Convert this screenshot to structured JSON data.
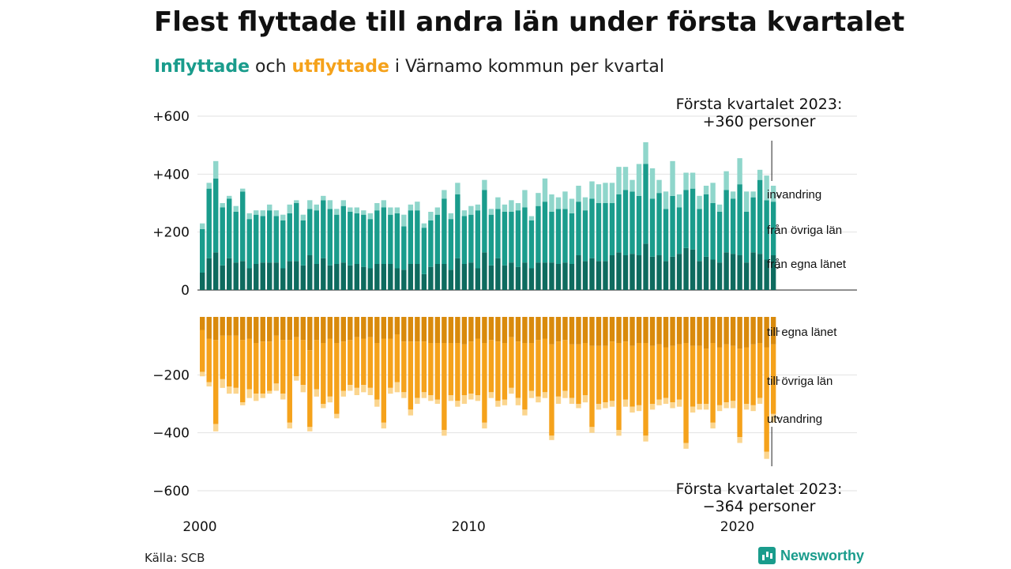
{
  "title": "Flest flyttade till andra län under första kvartalet",
  "subtitle": {
    "part1": "Inflyttade",
    "part2": " och ",
    "part3": "utflyttade",
    "part4": " i Värnamo kommun per kvartal"
  },
  "source": "Källa: SCB",
  "logo": "Newsworthy",
  "colors": {
    "in_local": "#0e6b5f",
    "in_other": "#1a9c8c",
    "in_abroad": "#8fd6cb",
    "out_local": "#d98a0c",
    "out_other": "#f5a21b",
    "out_abroad": "#fbd58e"
  },
  "chart_data": {
    "type": "bar",
    "stacked": true,
    "x_start": "2000 Q1",
    "x_ticks": [
      {
        "value": 2000,
        "label": "2000"
      },
      {
        "value": 2010,
        "label": "2010"
      },
      {
        "value": 2020,
        "label": "2020"
      }
    ],
    "y_ticks": [
      {
        "value": 600,
        "label": "+600"
      },
      {
        "value": 400,
        "label": "+400"
      },
      {
        "value": 200,
        "label": "+200"
      },
      {
        "value": 0,
        "label": "0"
      },
      {
        "value": -200,
        "label": "−200"
      },
      {
        "value": -400,
        "label": "−400"
      },
      {
        "value": -600,
        "label": "−600"
      }
    ],
    "ylim_in": [
      0,
      600
    ],
    "ylim_out": [
      -600,
      0
    ],
    "series_in": [
      {
        "name": "från egna länet",
        "values": [
          60,
          110,
          130,
          85,
          110,
          95,
          100,
          75,
          90,
          95,
          95,
          95,
          75,
          100,
          100,
          85,
          120,
          90,
          110,
          85,
          90,
          95,
          85,
          90,
          80,
          75,
          90,
          90,
          90,
          75,
          70,
          90,
          90,
          55,
          80,
          90,
          90,
          70,
          110,
          90,
          95,
          75,
          130,
          85,
          110,
          85,
          95,
          80,
          95,
          75,
          95,
          95,
          95,
          90,
          95,
          90,
          120,
          100,
          110,
          100,
          100,
          120,
          130,
          120,
          125,
          120,
          160,
          115,
          120,
          100,
          115,
          125,
          145,
          140,
          100,
          115,
          105,
          95,
          130,
          125,
          120,
          95,
          130,
          125,
          105,
          120
        ]
      },
      {
        "name": "från övriga län",
        "values": [
          150,
          240,
          255,
          200,
          205,
          175,
          240,
          170,
          170,
          160,
          180,
          160,
          165,
          165,
          200,
          155,
          160,
          185,
          200,
          195,
          170,
          195,
          185,
          175,
          180,
          170,
          185,
          195,
          170,
          190,
          150,
          185,
          185,
          160,
          160,
          170,
          225,
          175,
          220,
          165,
          165,
          200,
          215,
          175,
          170,
          185,
          175,
          195,
          190,
          165,
          195,
          210,
          175,
          190,
          185,
          175,
          185,
          175,
          205,
          200,
          200,
          180,
          200,
          225,
          215,
          205,
          275,
          200,
          215,
          180,
          210,
          160,
          200,
          210,
          180,
          215,
          195,
          175,
          215,
          190,
          245,
          175,
          190,
          255,
          205,
          185
        ]
      },
      {
        "name": "invandring",
        "values": [
          20,
          20,
          60,
          15,
          10,
          20,
          10,
          20,
          15,
          20,
          20,
          20,
          20,
          30,
          10,
          20,
          30,
          20,
          15,
          30,
          20,
          20,
          15,
          20,
          15,
          20,
          25,
          25,
          25,
          20,
          40,
          20,
          30,
          15,
          30,
          25,
          30,
          20,
          40,
          20,
          30,
          20,
          35,
          20,
          40,
          25,
          40,
          25,
          60,
          15,
          45,
          80,
          60,
          40,
          60,
          50,
          55,
          45,
          60,
          65,
          70,
          70,
          95,
          80,
          40,
          110,
          75,
          105,
          45,
          60,
          120,
          45,
          60,
          55,
          45,
          30,
          70,
          25,
          65,
          25,
          90,
          70,
          20,
          35,
          85,
          55
        ]
      }
    ],
    "series_out": [
      {
        "name": "till egna länet",
        "values": [
          -45,
          -75,
          -80,
          -65,
          -65,
          -65,
          -80,
          -75,
          -90,
          -85,
          -85,
          -65,
          -80,
          -80,
          -70,
          -80,
          -115,
          -80,
          -90,
          -75,
          -90,
          -85,
          -80,
          -70,
          -75,
          -70,
          -90,
          -75,
          -75,
          -60,
          -85,
          -85,
          -85,
          -85,
          -90,
          -90,
          -90,
          -90,
          -90,
          -95,
          -85,
          -75,
          -90,
          -80,
          -85,
          -90,
          -70,
          -85,
          -90,
          -90,
          -80,
          -75,
          -95,
          -85,
          -80,
          -95,
          -95,
          -90,
          -100,
          -100,
          -100,
          -85,
          -90,
          -85,
          -100,
          -90,
          -90,
          -100,
          -95,
          -105,
          -100,
          -95,
          -90,
          -100,
          -100,
          -110,
          -90,
          -105,
          -95,
          -100,
          -110,
          -105,
          -95,
          -90,
          -105,
          -95
        ]
      },
      {
        "name": "till övriga län",
        "values": [
          -145,
          -150,
          -290,
          -150,
          -175,
          -180,
          -215,
          -175,
          -175,
          -180,
          -170,
          -165,
          -185,
          -285,
          -135,
          -155,
          -265,
          -170,
          -210,
          -200,
          -245,
          -170,
          -155,
          -175,
          -160,
          -175,
          -195,
          -290,
          -170,
          -165,
          -175,
          -235,
          -195,
          -175,
          -180,
          -195,
          -300,
          -180,
          -200,
          -175,
          -180,
          -195,
          -275,
          -180,
          -205,
          -195,
          -175,
          -195,
          -230,
          -165,
          -195,
          -185,
          -315,
          -190,
          -175,
          -185,
          -205,
          -180,
          -280,
          -200,
          -195,
          -205,
          -300,
          -200,
          -210,
          -215,
          -320,
          -200,
          -190,
          -175,
          -195,
          -190,
          -345,
          -210,
          -200,
          -190,
          -275,
          -200,
          -200,
          -190,
          -305,
          -195,
          -210,
          -190,
          -360,
          -240
        ]
      },
      {
        "name": "utvandring",
        "values": [
          -15,
          -15,
          -25,
          -30,
          -25,
          -20,
          -10,
          -30,
          -25,
          -15,
          -10,
          -25,
          -20,
          -20,
          -15,
          -25,
          -15,
          -25,
          -15,
          -20,
          -15,
          -20,
          -20,
          -25,
          -25,
          -25,
          -25,
          -20,
          -20,
          -35,
          -20,
          -20,
          -20,
          -20,
          -20,
          -15,
          -20,
          -20,
          -20,
          -30,
          -20,
          -20,
          -20,
          -20,
          -20,
          -20,
          -20,
          -25,
          -20,
          -25,
          -20,
          -20,
          -15,
          -25,
          -25,
          -20,
          -15,
          -25,
          -20,
          -20,
          -20,
          -20,
          -20,
          -25,
          -20,
          -20,
          -20,
          -20,
          -20,
          -20,
          -20,
          -25,
          -20,
          -20,
          -20,
          -20,
          -20,
          -20,
          -20,
          -25,
          -20,
          -20,
          -20,
          -20,
          -25,
          -29
        ]
      }
    ],
    "labels_in": [
      "invandring",
      "från övriga län",
      "från egna länet"
    ],
    "labels_out": [
      "till egna länet",
      "till övriga län",
      "utvandring"
    ],
    "annotation_top": {
      "line1": "Första kvartalet 2023:",
      "line2": "+360 personer"
    },
    "annotation_bottom": {
      "line1": "Första kvartalet 2023:",
      "line2": "−364 personer"
    }
  }
}
